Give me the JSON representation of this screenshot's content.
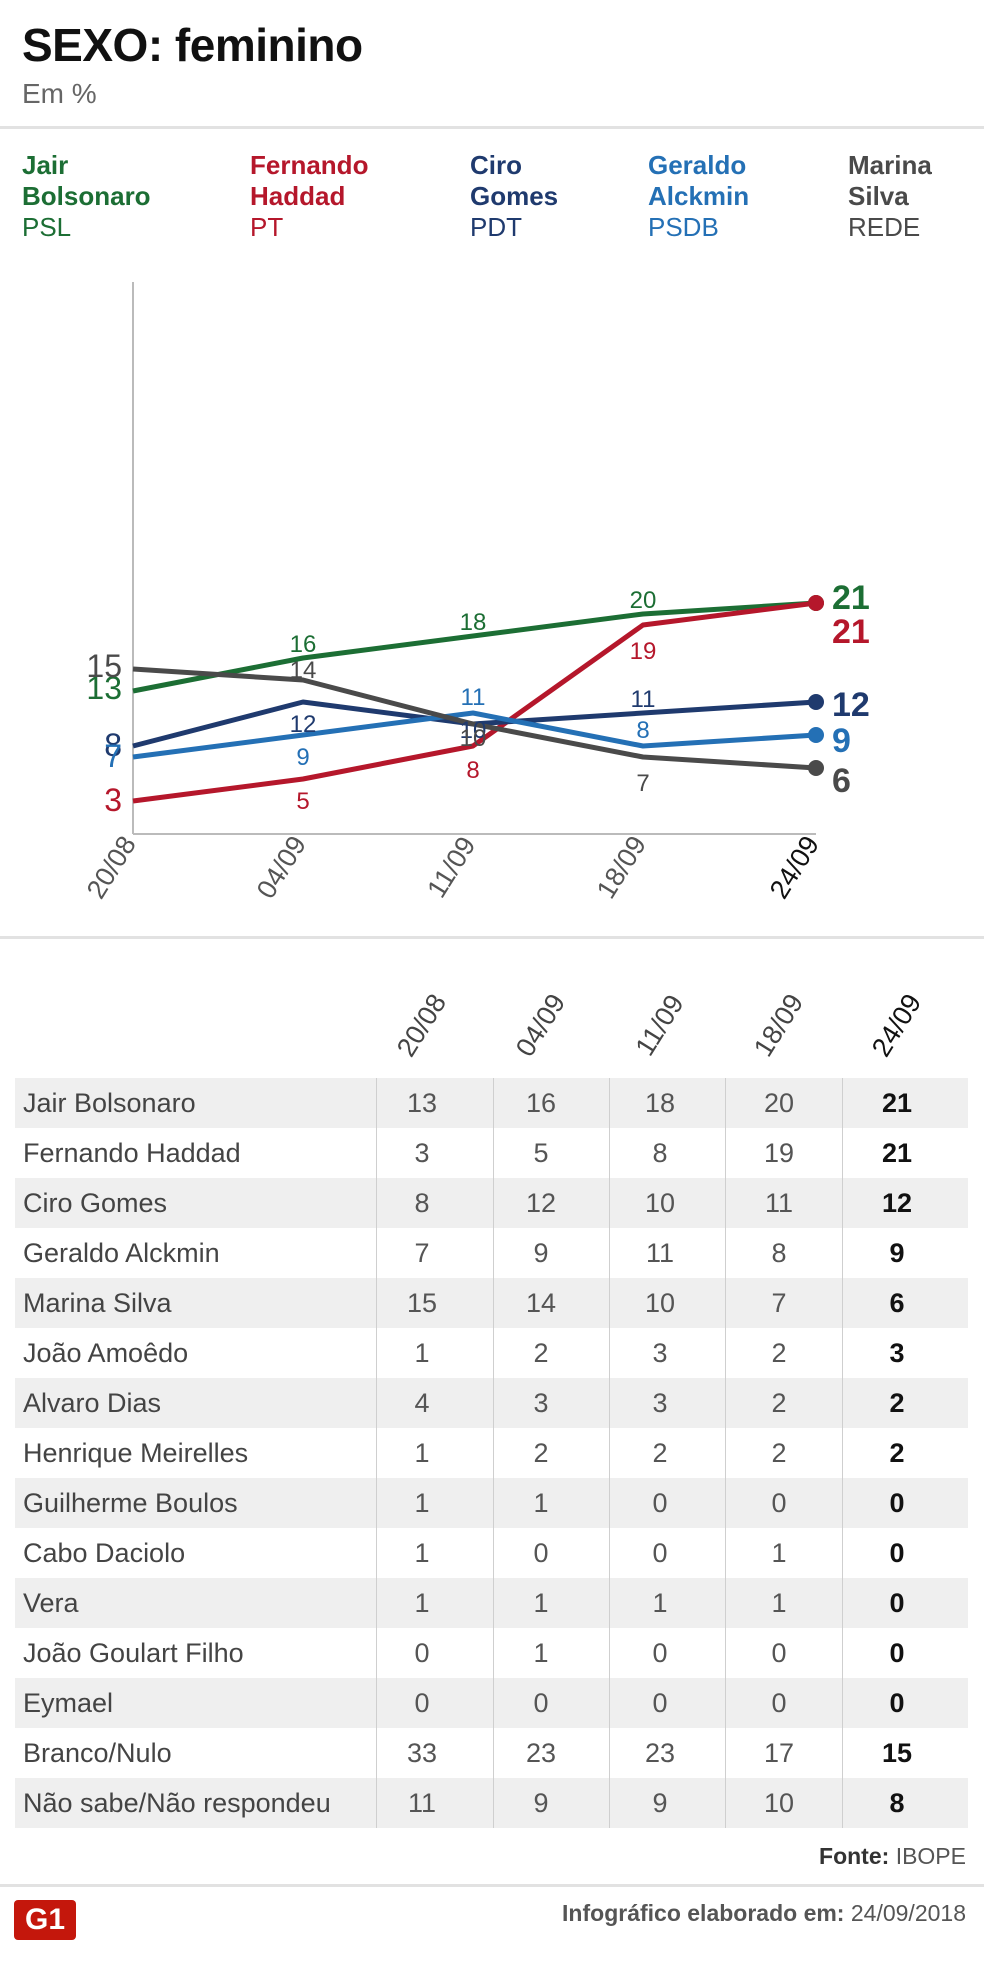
{
  "title": "SEXO: feminino",
  "subtitle": "Em %",
  "legend": [
    {
      "name": "Jair\nBolsonaro",
      "party": "PSL",
      "color": "#1c6e34"
    },
    {
      "name": "Fernando\nHaddad",
      "party": "PT",
      "color": "#b5172b"
    },
    {
      "name": "Ciro\nGomes",
      "party": "PDT",
      "color": "#1f3a6e"
    },
    {
      "name": "Geraldo\nAlckmin",
      "party": "PSDB",
      "color": "#2470b5"
    },
    {
      "name": "Marina\nSilva",
      "party": "REDE",
      "color": "#4a4a4a"
    }
  ],
  "chart_data": {
    "type": "line",
    "x": [
      "20/08",
      "04/09",
      "11/09",
      "18/09",
      "24/09"
    ],
    "series": [
      {
        "name": "Jair Bolsonaro",
        "color": "#1c6e34",
        "values": [
          13,
          16,
          18,
          20,
          21
        ]
      },
      {
        "name": "Fernando Haddad",
        "color": "#b5172b",
        "values": [
          3,
          5,
          8,
          19,
          21
        ]
      },
      {
        "name": "Ciro Gomes",
        "color": "#1f3a6e",
        "values": [
          8,
          12,
          10,
          11,
          12
        ]
      },
      {
        "name": "Geraldo Alckmin",
        "color": "#2470b5",
        "values": [
          7,
          9,
          11,
          8,
          9
        ]
      },
      {
        "name": "Marina Silva",
        "color": "#4a4a4a",
        "values": [
          15,
          14,
          10,
          7,
          6
        ]
      }
    ],
    "ylim": [
      0,
      50
    ],
    "title": "SEXO: feminino",
    "subtitle": "Em %"
  },
  "table": {
    "headers": [
      "20/08",
      "04/09",
      "11/09",
      "18/09",
      "24/09"
    ],
    "rows": [
      {
        "name": "Jair Bolsonaro",
        "values": [
          "13",
          "16",
          "18",
          "20",
          "21"
        ]
      },
      {
        "name": "Fernando Haddad",
        "values": [
          "3",
          "5",
          "8",
          "19",
          "21"
        ]
      },
      {
        "name": "Ciro Gomes",
        "values": [
          "8",
          "12",
          "10",
          "11",
          "12"
        ]
      },
      {
        "name": "Geraldo Alckmin",
        "values": [
          "7",
          "9",
          "11",
          "8",
          "9"
        ]
      },
      {
        "name": "Marina Silva",
        "values": [
          "15",
          "14",
          "10",
          "7",
          "6"
        ]
      },
      {
        "name": "João Amoêdo",
        "values": [
          "1",
          "2",
          "3",
          "2",
          "3"
        ]
      },
      {
        "name": "Alvaro Dias",
        "values": [
          "4",
          "3",
          "3",
          "2",
          "2"
        ]
      },
      {
        "name": "Henrique Meirelles",
        "values": [
          "1",
          "2",
          "2",
          "2",
          "2"
        ]
      },
      {
        "name": "Guilherme Boulos",
        "values": [
          "1",
          "1",
          "0",
          "0",
          "0"
        ]
      },
      {
        "name": "Cabo Daciolo",
        "values": [
          "1",
          "0",
          "0",
          "1",
          "0"
        ]
      },
      {
        "name": "Vera",
        "values": [
          "1",
          "1",
          "1",
          "1",
          "0"
        ]
      },
      {
        "name": "João Goulart Filho",
        "values": [
          "0",
          "1",
          "0",
          "0",
          "0"
        ]
      },
      {
        "name": "Eymael",
        "values": [
          "0",
          "0",
          "0",
          "0",
          "0"
        ]
      },
      {
        "name": "Branco/Nulo",
        "values": [
          "33",
          "23",
          "23",
          "17",
          "15"
        ]
      },
      {
        "name": "Não sabe/Não respondeu",
        "values": [
          "11",
          "9",
          "9",
          "10",
          "8"
        ]
      }
    ]
  },
  "source_label": "Fonte:",
  "source_value": "IBOPE",
  "footer_label": "Infográfico elaborado em:",
  "footer_date": "24/09/2018",
  "logo_text": "G1"
}
